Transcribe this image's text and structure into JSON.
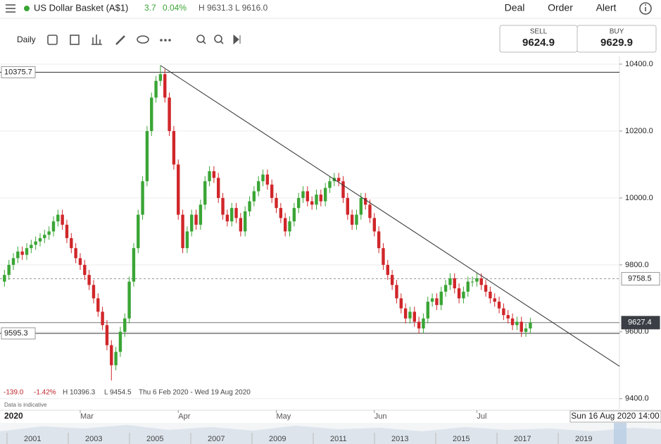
{
  "header": {
    "title": "US Dollar Basket (A$1)",
    "change": "3.7",
    "change_percent": "0.04%",
    "high": "H 9631.3",
    "low": "L 9616.0",
    "buttons": [
      "Deal",
      "Order",
      "Alert"
    ]
  },
  "toolbar": {
    "interval": "Daily"
  },
  "quote": {
    "sell_label": "SELL",
    "sell": "9624.9",
    "buy_label": "BUY",
    "buy": "9629.9"
  },
  "chart_data": {
    "type": "candlestick",
    "xlabel": "2020",
    "xlim": [
      -1,
      138
    ],
    "xticks": [
      {
        "value": 17,
        "label": "Mar"
      },
      {
        "value": 39,
        "label": "Apr"
      },
      {
        "value": 61,
        "label": "May"
      },
      {
        "value": 83,
        "label": "Jun"
      },
      {
        "value": 106,
        "label": "Jul"
      }
    ],
    "ylim": [
      9370,
      10440
    ],
    "yticks": [
      {
        "value": 9400,
        "label": "9400.0"
      },
      {
        "value": 9600,
        "label": "9600.0"
      },
      {
        "value": 9800,
        "label": "9800.0"
      },
      {
        "value": 10000,
        "label": "10000.0"
      },
      {
        "value": 10200,
        "label": "10200.0"
      },
      {
        "value": 10400,
        "label": "10400.0"
      }
    ],
    "grid": true,
    "up_color": "#3aa535",
    "down_color": "#d0262a",
    "open": [
      9750,
      9770,
      9800,
      9820,
      9840,
      9830,
      9850,
      9860,
      9870,
      9880,
      9890,
      9900,
      9930,
      9950,
      9920,
      9880,
      9850,
      9820,
      9800,
      9770,
      9740,
      9700,
      9660,
      9620,
      9560,
      9500,
      9540,
      9600,
      9640,
      9750,
      9850,
      9950,
      10050,
      10200,
      10300,
      10350,
      10370,
      10300,
      10200,
      10100,
      9950,
      9850,
      9900,
      9950,
      9920,
      9980,
      10050,
      10080,
      10060,
      10000,
      9950,
      9930,
      9970,
      9940,
      9900,
      9960,
      9990,
      10020,
      10050,
      10070,
      10040,
      10000,
      9970,
      9940,
      9900,
      9930,
      9970,
      10000,
      10020,
      9990,
      9980,
      10010,
      9990,
      10030,
      10050,
      10060,
      10050,
      10000,
      9950,
      9920,
      9950,
      10000,
      9980,
      9940,
      9900,
      9850,
      9800,
      9770,
      9740,
      9700,
      9670,
      9640,
      9660,
      9630,
      9610,
      9640,
      9690,
      9700,
      9680,
      9720,
      9740,
      9760,
      9730,
      9700,
      9720,
      9750,
      9750,
      9760,
      9740,
      9720,
      9700,
      9690,
      9670,
      9650,
      9640,
      9620,
      9630,
      9600,
      9610
    ],
    "high": [
      9785,
      9815,
      9835,
      9855,
      9855,
      9865,
      9875,
      9885,
      9895,
      9905,
      9915,
      9945,
      9965,
      9965,
      9935,
      9895,
      9865,
      9835,
      9815,
      9785,
      9755,
      9715,
      9675,
      9635,
      9575,
      9555,
      9615,
      9655,
      9765,
      9865,
      9965,
      10065,
      10215,
      10315,
      10365,
      10396.3,
      10385,
      10315,
      10215,
      10115,
      9965,
      9915,
      9965,
      9965,
      9995,
      10065,
      10095,
      10095,
      10075,
      10015,
      9965,
      9985,
      9985,
      9955,
      9975,
      10005,
      10035,
      10065,
      10085,
      10085,
      10055,
      10015,
      9985,
      9955,
      9945,
      9985,
      10015,
      10035,
      10035,
      10005,
      10025,
      10025,
      10045,
      10065,
      10075,
      10075,
      10065,
      10015,
      9965,
      9965,
      10015,
      10015,
      9995,
      9955,
      9915,
      9865,
      9815,
      9785,
      9755,
      9715,
      9685,
      9675,
      9675,
      9645,
      9655,
      9705,
      9715,
      9715,
      9735,
      9755,
      9775,
      9775,
      9745,
      9735,
      9765,
      9765,
      9775,
      9775,
      9755,
      9735,
      9715,
      9705,
      9685,
      9665,
      9655,
      9645,
      9645,
      9625,
      9642
    ],
    "low": [
      9735,
      9755,
      9785,
      9805,
      9815,
      9815,
      9835,
      9845,
      9855,
      9865,
      9875,
      9885,
      9915,
      9905,
      9865,
      9835,
      9805,
      9785,
      9755,
      9725,
      9685,
      9645,
      9605,
      9545,
      9454.5,
      9485,
      9525,
      9585,
      9625,
      9735,
      9835,
      9935,
      10035,
      10185,
      10285,
      10335,
      10285,
      10185,
      10085,
      9935,
      9835,
      9835,
      9885,
      9905,
      9905,
      9965,
      10035,
      10045,
      9985,
      9935,
      9915,
      9915,
      9925,
      9885,
      9885,
      9945,
      9975,
      10005,
      10035,
      10025,
      9985,
      9955,
      9925,
      9885,
      9885,
      9915,
      9955,
      9985,
      9975,
      9965,
      9965,
      9975,
      9975,
      10015,
      10035,
      10035,
      9985,
      9935,
      9905,
      9905,
      9935,
      9965,
      9925,
      9885,
      9835,
      9785,
      9755,
      9725,
      9685,
      9655,
      9625,
      9625,
      9615,
      9595,
      9595,
      9625,
      9675,
      9665,
      9665,
      9705,
      9725,
      9715,
      9685,
      9685,
      9705,
      9735,
      9735,
      9725,
      9705,
      9685,
      9675,
      9655,
      9635,
      9625,
      9605,
      9605,
      9585,
      9585,
      9595
    ],
    "close": [
      9770,
      9800,
      9820,
      9840,
      9830,
      9850,
      9860,
      9870,
      9880,
      9890,
      9900,
      9930,
      9950,
      9920,
      9880,
      9850,
      9820,
      9800,
      9770,
      9740,
      9700,
      9660,
      9620,
      9560,
      9500,
      9540,
      9600,
      9640,
      9750,
      9850,
      9950,
      10050,
      10200,
      10300,
      10350,
      10370,
      10300,
      10200,
      10100,
      9950,
      9850,
      9900,
      9950,
      9920,
      9980,
      10050,
      10080,
      10060,
      10000,
      9950,
      9930,
      9970,
      9940,
      9900,
      9960,
      9990,
      10020,
      10050,
      10070,
      10040,
      10000,
      9970,
      9940,
      9900,
      9930,
      9970,
      10000,
      10020,
      9990,
      9980,
      10010,
      9990,
      10030,
      10050,
      10060,
      10050,
      10000,
      9950,
      9920,
      9950,
      10000,
      9980,
      9940,
      9900,
      9850,
      9800,
      9770,
      9740,
      9700,
      9670,
      9640,
      9660,
      9630,
      9610,
      9640,
      9690,
      9700,
      9680,
      9720,
      9740,
      9760,
      9730,
      9700,
      9720,
      9750,
      9750,
      9760,
      9740,
      9720,
      9700,
      9690,
      9670,
      9650,
      9640,
      9620,
      9630,
      9600,
      9610,
      9627
    ],
    "levels": [
      {
        "value": 10375.7,
        "side": "left",
        "style": "solid"
      },
      {
        "value": 9595.3,
        "side": "left",
        "style": "solid"
      },
      {
        "value": 9758.5,
        "side": "right",
        "style": "dashed"
      },
      {
        "value": 9627.4,
        "side": "right",
        "style": "current"
      }
    ],
    "trendline": {
      "x": [
        35,
        138
      ],
      "y": [
        10396,
        9497
      ]
    }
  },
  "stats": {
    "change": "-139.0",
    "change_percent": "-1.42%",
    "high": "H 10396.3",
    "low": "L 9454.5",
    "range": "Thu 6 Feb 2020 - Wed 19 Aug 2020",
    "note": "Data is indicative"
  },
  "navigator": {
    "date": "Sun 16 Aug 2020 14:00",
    "years": [
      "2001",
      "2003",
      "2005",
      "2007",
      "2009",
      "2011",
      "2013",
      "2015",
      "2017",
      "2019"
    ]
  }
}
